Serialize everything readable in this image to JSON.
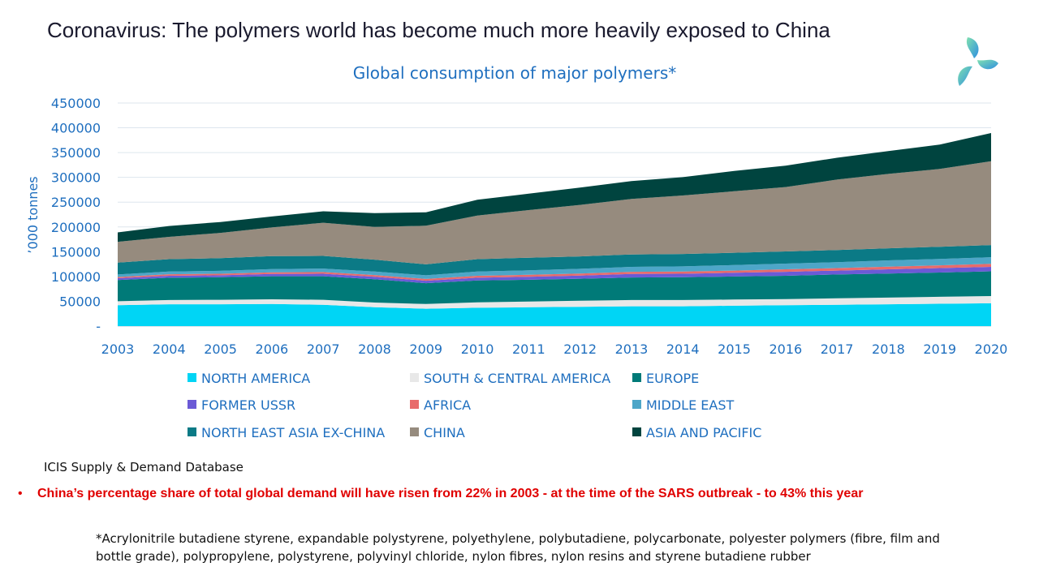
{
  "slide": {
    "title": "Coronavirus: The polymers world has become much more heavily exposed to China",
    "source": "ICIS Supply & Demand Database",
    "bullet_marker": "•",
    "bullet": "China’s percentage share of total global demand will have risen from 22% in 2003 - at the time of the SARS outbreak - to 43% this year",
    "footnote": "*Acrylonitrile butadiene styrene, expandable polystyrene, polyethylene, polybutadiene, polycarbonate, polyester polymers (fibre, film and bottle grade), polypropylene, polystyrene, polyvinyl chloride, nylon fibres, nylon resins and styrene butadiene rubber",
    "logo_icon": "three-petal-logo-icon"
  },
  "chart_data": {
    "type": "area",
    "stacked": true,
    "title": "Global consumption of major polymers*",
    "ylabel": "’000 tonnes",
    "xlabel": "",
    "ylim": [
      0,
      450000
    ],
    "yticks": [
      0,
      50000,
      100000,
      150000,
      200000,
      250000,
      300000,
      350000,
      400000,
      450000
    ],
    "ytick_labels": [
      "-",
      "50000",
      "100000",
      "150000",
      "200000",
      "250000",
      "300000",
      "350000",
      "400000",
      "450000"
    ],
    "grid": true,
    "legend_position": "bottom",
    "x": [
      "2003",
      "2004",
      "2005",
      "2006",
      "2007",
      "2008",
      "2009",
      "2010",
      "2011",
      "2012",
      "2013",
      "2014",
      "2015",
      "2016",
      "2017",
      "2018",
      "2019",
      "2020"
    ],
    "series": [
      {
        "name": "NORTH AMERICA",
        "color": "#00d5f5",
        "values": [
          42000,
          44000,
          44000,
          44500,
          43000,
          38000,
          35000,
          37000,
          38000,
          39000,
          40000,
          40000,
          41000,
          42000,
          43000,
          44000,
          45000,
          46000
        ]
      },
      {
        "name": "SOUTH & CENTRAL AMERICA",
        "color": "#e8e8e8",
        "values": [
          8000,
          8500,
          9000,
          9500,
          10000,
          9500,
          9500,
          11000,
          11500,
          12000,
          12500,
          12500,
          12500,
          12500,
          13000,
          13500,
          14000,
          14500
        ]
      },
      {
        "name": "EUROPE",
        "color": "#007a78",
        "values": [
          43000,
          45000,
          45500,
          46500,
          47500,
          47000,
          42000,
          44000,
          44000,
          44500,
          45500,
          46000,
          46500,
          47000,
          48000,
          48500,
          49000,
          50000
        ]
      },
      {
        "name": "FORMER USSR",
        "color": "#6b5ad6",
        "values": [
          3500,
          4000,
          4000,
          4500,
          5000,
          5000,
          5000,
          5500,
          6000,
          6500,
          7000,
          7000,
          7500,
          8000,
          8000,
          8500,
          9000,
          9000
        ]
      },
      {
        "name": "AFRICA",
        "color": "#e86b6b",
        "values": [
          2500,
          3000,
          3000,
          3500,
          3500,
          3500,
          3500,
          4000,
          4000,
          4000,
          4500,
          4500,
          4500,
          5000,
          5000,
          5500,
          5500,
          6000
        ]
      },
      {
        "name": "MIDDLE EAST",
        "color": "#4da6c8",
        "values": [
          5000,
          5500,
          6000,
          6500,
          7000,
          7000,
          7500,
          8500,
          9000,
          9500,
          10000,
          10500,
          11000,
          11500,
          12000,
          12500,
          13000,
          13500
        ]
      },
      {
        "name": "NORTH EAST ASIA EX-CHINA",
        "color": "#0b7a86",
        "values": [
          24000,
          25000,
          25500,
          26000,
          25500,
          24000,
          22000,
          25000,
          25500,
          25000,
          25000,
          25000,
          25000,
          24500,
          24500,
          24500,
          24500,
          24500
        ]
      },
      {
        "name": "CHINA",
        "color": "#968b7e",
        "values": [
          42000,
          45000,
          51000,
          58000,
          67000,
          66000,
          78000,
          88000,
          96000,
          104000,
          112000,
          118000,
          124000,
          130000,
          142000,
          150000,
          157000,
          169000
        ]
      },
      {
        "name": "ASIA AND PACIFIC",
        "color": "#00443f",
        "values": [
          19000,
          22000,
          22000,
          22000,
          23000,
          28000,
          27000,
          32000,
          33000,
          35000,
          36000,
          37000,
          41000,
          43000,
          44000,
          46000,
          49000,
          57000
        ]
      }
    ]
  }
}
